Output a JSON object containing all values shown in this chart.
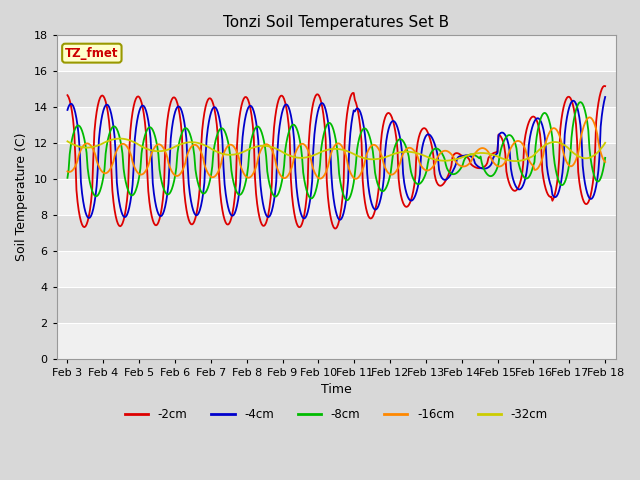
{
  "title": "Tonzi Soil Temperatures Set B",
  "xlabel": "Time",
  "ylabel": "Soil Temperature (C)",
  "ylim": [
    0,
    18
  ],
  "yticks": [
    0,
    2,
    4,
    6,
    8,
    10,
    12,
    14,
    16,
    18
  ],
  "x_labels": [
    "Feb 3",
    "Feb 4",
    "Feb 5",
    "Feb 6",
    "Feb 7",
    "Feb 8",
    "Feb 9",
    "Feb 10",
    "Feb 11",
    "Feb 12",
    "Feb 13",
    "Feb 14",
    "Feb 15",
    "Feb 16",
    "Feb 17",
    "Feb 18"
  ],
  "annotation_text": "TZ_fmet",
  "annotation_bg": "#ffffcc",
  "annotation_border": "#999900",
  "annotation_text_color": "#cc0000",
  "series_colors": [
    "#dd0000",
    "#0000cc",
    "#00bb00",
    "#ff8800",
    "#cccc00"
  ],
  "series_labels": [
    "-2cm",
    "-4cm",
    "-8cm",
    "-16cm",
    "-32cm"
  ],
  "background_color": "#d8d8d8",
  "plot_bg_light": "#f0f0f0",
  "plot_bg_dark": "#e0e0e0",
  "grid_color": "#ffffff",
  "n_points": 480
}
